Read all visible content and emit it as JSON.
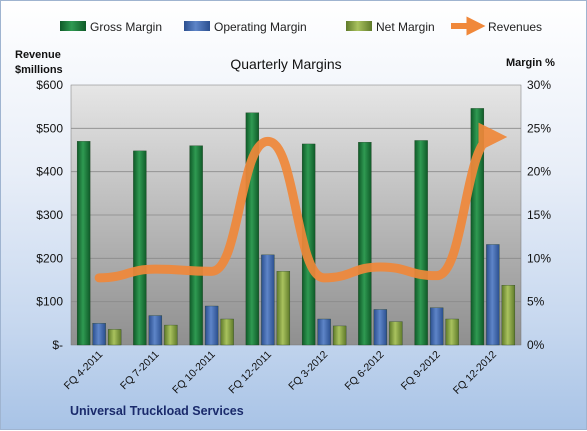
{
  "chart_data": {
    "type": "bar",
    "title": "Quarterly Margins",
    "footer": "Universal Truckload  Services",
    "y_left_label": [
      "Revenue",
      "$millions"
    ],
    "y_right_label": "Margin %",
    "left_ticks": [
      "$-",
      "$100",
      "$200",
      "$300",
      "$400",
      "$500",
      "$600"
    ],
    "right_ticks": [
      "0%",
      "5%",
      "10%",
      "15%",
      "20%",
      "25%",
      "30%"
    ],
    "left_ylim": [
      0,
      600
    ],
    "right_ylim": [
      0,
      30
    ],
    "categories": [
      "FQ 4-2011",
      "FQ 7-2011",
      "FQ 10-2011",
      "FQ 12-2011",
      "FQ 3-2012",
      "FQ 6-2012",
      "FQ 9-2012",
      "FQ 12-2012"
    ],
    "series": [
      {
        "name": "Gross Margin",
        "axis": "right",
        "color": "#1e7f3e",
        "values": [
          23.5,
          22.4,
          23.0,
          26.8,
          23.2,
          23.4,
          23.6,
          27.3
        ]
      },
      {
        "name": "Operating Margin",
        "axis": "right",
        "color": "#4a6fb5",
        "values": [
          2.5,
          3.4,
          4.5,
          10.4,
          3.0,
          4.1,
          4.3,
          11.6
        ]
      },
      {
        "name": "Net Margin",
        "axis": "right",
        "color": "#8faa4a",
        "values": [
          1.8,
          2.3,
          3.0,
          8.5,
          2.2,
          2.7,
          3.0,
          6.9
        ]
      },
      {
        "name": "Revenues",
        "axis": "left",
        "type": "line",
        "color": "#f0883a",
        "values": [
          155,
          175,
          170,
          470,
          155,
          180,
          160,
          480
        ]
      }
    ],
    "legend_position": "top",
    "grid": true
  }
}
